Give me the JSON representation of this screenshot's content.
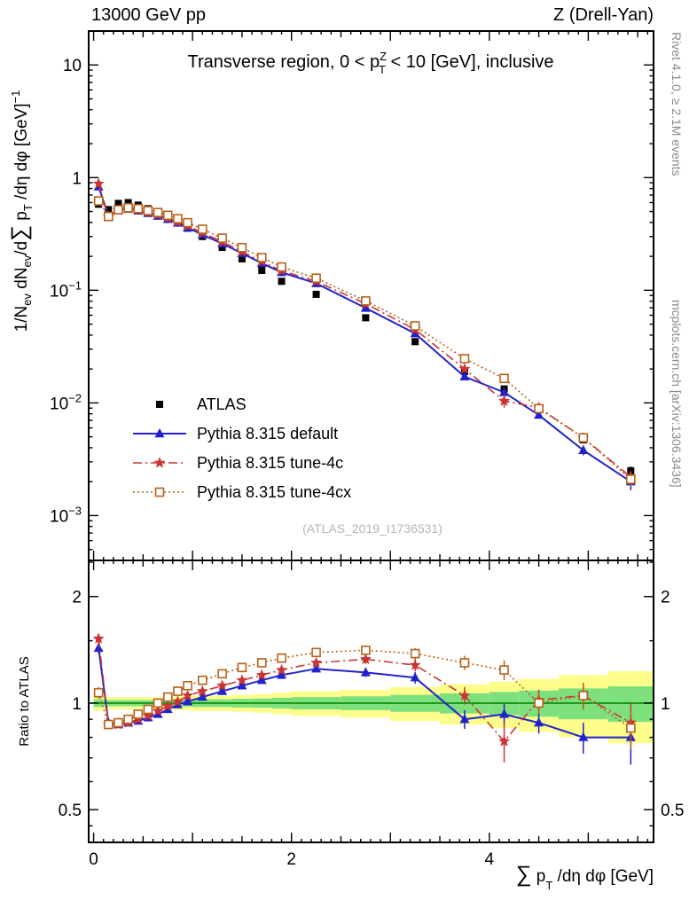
{
  "header": {
    "left": "13000 GeV pp",
    "right": "Z (Drell-Yan)"
  },
  "title": {
    "p1": "Transverse region, 0 < p",
    "sup": "Z",
    "sub": "T",
    "p2": " < 10 [GeV], inclusive"
  },
  "side_notes": {
    "top_right": "Rivet 4.1.0, ≥ 2.1M events",
    "bottom_right": "mcplots.cern.ch [arXiv:1306.3436]"
  },
  "watermark": "(ATLAS_2019_I1736531)",
  "axes": {
    "y_main": {
      "p1": "1/N",
      "p2": "ev",
      "p3": " dN",
      "p4": "ev",
      "p5": "/d",
      "p6": "∑",
      "p7": " p",
      "p8": "T",
      "p9": " /dη dφ  [GeV]",
      "p10": "−1"
    },
    "y_ratio_label": "Ratio to ATLAS",
    "x_label": {
      "sum": "∑",
      "p": " p",
      "sub": "T",
      "rest": " /dη dφ  [GeV]"
    },
    "x_ticks": [
      {
        "v": 0,
        "label": "0"
      },
      {
        "v": 2,
        "label": "2"
      },
      {
        "v": 4,
        "label": "4"
      }
    ],
    "y_main_ticks": [
      {
        "v": 10,
        "base": "10"
      },
      {
        "v": 1,
        "base": "1"
      },
      {
        "v": 0.1,
        "base": "10",
        "exp": "−1"
      },
      {
        "v": 0.01,
        "base": "10",
        "exp": "−2"
      },
      {
        "v": 0.001,
        "base": "10",
        "exp": "−3"
      }
    ],
    "y_ratio_ticks": [
      {
        "v": 2,
        "label": "2"
      },
      {
        "v": 1,
        "label": "1"
      },
      {
        "v": 0.5,
        "label": "0.5"
      }
    ],
    "y_ratio_minor_ticks": [
      0.45,
      0.6,
      0.7,
      0.8,
      0.9,
      1.5,
      2.5
    ]
  },
  "chart_data": {
    "type": "line",
    "x_scale": "linear",
    "y_main_scale": "log",
    "y_ratio_scale": "log",
    "xlim": [
      -0.05,
      5.66
    ],
    "main_ylim": [
      0.0004,
      20
    ],
    "ratio_ylim": [
      0.404,
      2.53
    ],
    "x": [
      0.05,
      0.15,
      0.25,
      0.35,
      0.45,
      0.55,
      0.65,
      0.75,
      0.85,
      0.95,
      1.1,
      1.3,
      1.5,
      1.7,
      1.9,
      2.25,
      2.75,
      3.25,
      3.75,
      4.15,
      4.5,
      4.95,
      5.43
    ],
    "bin_edges": [
      0,
      0.1,
      0.2,
      0.3,
      0.4,
      0.5,
      0.6,
      0.7,
      0.8,
      0.9,
      1.0,
      1.2,
      1.4,
      1.6,
      1.8,
      2.0,
      2.5,
      3.0,
      3.5,
      4.0,
      4.3,
      4.7,
      5.2,
      5.66
    ],
    "series": [
      {
        "name": "ATLAS",
        "color": "#000000",
        "marker": "square-filled",
        "line": "none",
        "values": [
          0.58,
          0.52,
          0.59,
          0.6,
          0.57,
          0.53,
          0.49,
          0.445,
          0.4,
          0.355,
          0.3,
          0.24,
          0.19,
          0.15,
          0.12,
          0.092,
          0.057,
          0.035,
          0.019,
          0.0133,
          0.0089,
          0.0047,
          0.0025
        ],
        "rel_err": [
          0.02,
          0.015,
          0.015,
          0.015,
          0.015,
          0.015,
          0.015,
          0.015,
          0.015,
          0.015,
          0.015,
          0.015,
          0.02,
          0.02,
          0.02,
          0.02,
          0.025,
          0.03,
          0.04,
          0.05,
          0.055,
          0.07,
          0.09
        ]
      },
      {
        "name": "Pythia 8.315 default",
        "color": "#2222cc",
        "marker": "triangle-filled",
        "line": "solid",
        "values": [
          0.83,
          0.458,
          0.513,
          0.528,
          0.507,
          0.482,
          0.456,
          0.427,
          0.396,
          0.359,
          0.312,
          0.259,
          0.213,
          0.174,
          0.144,
          0.115,
          0.0695,
          0.0413,
          0.0171,
          0.0124,
          0.0078,
          0.0038,
          0.002
        ],
        "ratio": [
          1.43,
          0.88,
          0.87,
          0.88,
          0.89,
          0.91,
          0.93,
          0.96,
          0.99,
          1.01,
          1.04,
          1.08,
          1.12,
          1.16,
          1.2,
          1.25,
          1.22,
          1.18,
          0.9,
          0.93,
          0.88,
          0.8,
          0.8
        ],
        "ratio_err": [
          0.05,
          0.02,
          0.015,
          0.015,
          0.015,
          0.015,
          0.015,
          0.015,
          0.02,
          0.02,
          0.02,
          0.02,
          0.025,
          0.025,
          0.03,
          0.03,
          0.035,
          0.045,
          0.055,
          0.065,
          0.06,
          0.08,
          0.13
        ]
      },
      {
        "name": "Pythia 8.315 tune-4c",
        "color": "#cc3333",
        "marker": "star",
        "line": "dashdot",
        "values": [
          0.882,
          0.452,
          0.513,
          0.528,
          0.513,
          0.488,
          0.466,
          0.436,
          0.404,
          0.373,
          0.324,
          0.269,
          0.22,
          0.18,
          0.149,
          0.12,
          0.0758,
          0.0448,
          0.02,
          0.0104,
          0.0091,
          0.0049,
          0.0022
        ],
        "ratio": [
          1.52,
          0.87,
          0.87,
          0.88,
          0.9,
          0.92,
          0.95,
          0.98,
          1.01,
          1.05,
          1.08,
          1.12,
          1.16,
          1.2,
          1.24,
          1.3,
          1.33,
          1.28,
          1.05,
          0.78,
          1.02,
          1.05,
          0.88
        ],
        "ratio_err": [
          0.05,
          0.02,
          0.015,
          0.015,
          0.015,
          0.015,
          0.015,
          0.015,
          0.02,
          0.02,
          0.02,
          0.02,
          0.025,
          0.025,
          0.03,
          0.035,
          0.04,
          0.05,
          0.06,
          0.1,
          0.07,
          0.09,
          0.12
        ]
      },
      {
        "name": "Pythia 8.315 tune-4cx",
        "color": "#b8601a",
        "marker": "square-open",
        "line": "dotted",
        "values": [
          0.621,
          0.452,
          0.519,
          0.54,
          0.53,
          0.509,
          0.49,
          0.463,
          0.432,
          0.398,
          0.348,
          0.29,
          0.239,
          0.195,
          0.161,
          0.128,
          0.0804,
          0.0483,
          0.0247,
          0.0165,
          0.0089,
          0.0049,
          0.0021
        ],
        "ratio": [
          1.07,
          0.87,
          0.88,
          0.9,
          0.93,
          0.96,
          1.0,
          1.04,
          1.08,
          1.12,
          1.16,
          1.21,
          1.26,
          1.3,
          1.34,
          1.39,
          1.41,
          1.38,
          1.3,
          1.24,
          1.0,
          1.05,
          0.85
        ],
        "ratio_err": [
          0.04,
          0.02,
          0.015,
          0.015,
          0.015,
          0.015,
          0.015,
          0.015,
          0.02,
          0.02,
          0.02,
          0.02,
          0.025,
          0.025,
          0.03,
          0.035,
          0.04,
          0.05,
          0.06,
          0.08,
          0.07,
          0.09,
          0.11
        ]
      }
    ],
    "bands": {
      "yellow": {
        "color": "#fdfd8c",
        "half_widths": [
          0.05,
          0.04,
          0.04,
          0.04,
          0.04,
          0.04,
          0.04,
          0.04,
          0.045,
          0.045,
          0.05,
          0.05,
          0.055,
          0.06,
          0.07,
          0.08,
          0.09,
          0.11,
          0.13,
          0.15,
          0.17,
          0.2,
          0.23
        ]
      },
      "green": {
        "color": "#7de07d",
        "half_widths": [
          0.025,
          0.02,
          0.02,
          0.02,
          0.02,
          0.02,
          0.02,
          0.02,
          0.022,
          0.022,
          0.025,
          0.025,
          0.028,
          0.03,
          0.035,
          0.04,
          0.045,
          0.055,
          0.065,
          0.075,
          0.085,
          0.1,
          0.115
        ]
      }
    },
    "ref_line": {
      "value": 1,
      "color": "#008800"
    }
  }
}
